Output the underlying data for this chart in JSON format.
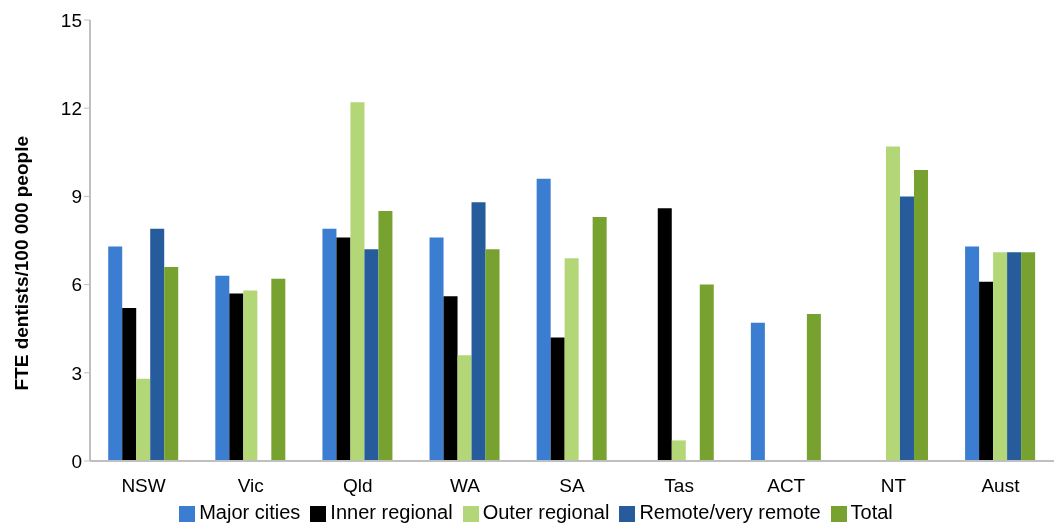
{
  "chart_data": {
    "type": "bar",
    "ylabel": "FTE  dentists/100 000 people",
    "categories": [
      "NSW",
      "Vic",
      "Qld",
      "WA",
      "SA",
      "Tas",
      "ACT",
      "NT",
      "Aust"
    ],
    "series": [
      {
        "name": "Major cities",
        "color": "#3a7dd1",
        "values": [
          7.3,
          6.3,
          7.9,
          7.6,
          9.6,
          null,
          4.7,
          null,
          7.3
        ]
      },
      {
        "name": "Inner regional",
        "color": "#000000",
        "values": [
          5.2,
          5.7,
          7.6,
          5.6,
          4.2,
          8.6,
          null,
          null,
          6.1
        ]
      },
      {
        "name": "Outer regional",
        "color": "#b3d677",
        "values": [
          2.8,
          5.8,
          12.2,
          3.6,
          6.9,
          0.7,
          null,
          10.7,
          7.1
        ]
      },
      {
        "name": "Remote/very remote",
        "color": "#265c9c",
        "values": [
          7.9,
          null,
          7.2,
          8.8,
          null,
          null,
          null,
          9.0,
          7.1
        ]
      },
      {
        "name": "Total",
        "color": "#78a22f",
        "values": [
          6.6,
          6.2,
          8.5,
          7.2,
          8.3,
          6.0,
          5.0,
          9.9,
          7.1
        ]
      }
    ],
    "ylim": [
      0,
      15
    ],
    "yticks": [
      0,
      3,
      6,
      9,
      12,
      15
    ],
    "grid": false,
    "legend": "bottom"
  }
}
